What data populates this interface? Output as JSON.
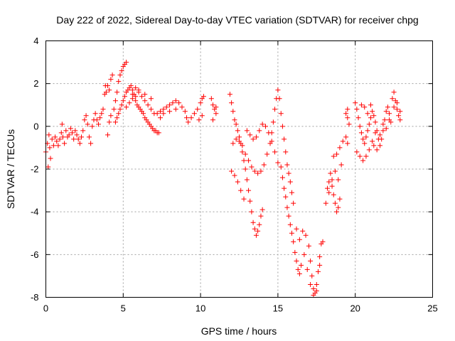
{
  "chart_data": {
    "type": "scatter",
    "title": "Day 222 of 2022, Sidereal Day-to-day VTEC variation (SDTVAR) for receiver chpg",
    "xlabel": "GPS time / hours",
    "ylabel": "SDTVAR / TECUs",
    "xlim": [
      0,
      25
    ],
    "ylim": [
      -8,
      4
    ],
    "xticks": [
      0,
      5,
      10,
      15,
      20,
      25
    ],
    "yticks": [
      -8,
      -6,
      -4,
      -2,
      0,
      2,
      4
    ],
    "grid": true,
    "marker": "+",
    "color": "#ff0000",
    "series": [
      {
        "points": [
          [
            0.0,
            -1.2
          ],
          [
            0.1,
            -0.8
          ],
          [
            0.2,
            -0.4
          ],
          [
            0.3,
            -1.5
          ],
          [
            0.15,
            -1.9
          ],
          [
            0.25,
            -1.0
          ],
          [
            0.4,
            -0.6
          ],
          [
            0.5,
            -0.9
          ],
          [
            0.6,
            -0.5
          ],
          [
            0.7,
            -0.7
          ],
          [
            0.8,
            -0.9
          ],
          [
            0.9,
            -0.6
          ],
          [
            1.0,
            -0.3
          ],
          [
            1.05,
            0.1
          ],
          [
            1.1,
            -0.5
          ],
          [
            1.2,
            -0.8
          ],
          [
            1.3,
            -0.2
          ],
          [
            1.4,
            -0.5
          ],
          [
            1.5,
            -0.4
          ],
          [
            1.6,
            -0.1
          ],
          [
            1.7,
            -0.3
          ],
          [
            1.8,
            -0.6
          ],
          [
            1.9,
            -0.2
          ],
          [
            2.0,
            -0.4
          ],
          [
            2.1,
            -0.6
          ],
          [
            2.2,
            -0.8
          ],
          [
            2.3,
            -0.5
          ],
          [
            2.4,
            -0.2
          ],
          [
            2.5,
            0.3
          ],
          [
            2.6,
            0.5
          ],
          [
            2.7,
            0.1
          ],
          [
            2.8,
            -0.5
          ],
          [
            2.9,
            -0.8
          ],
          [
            3.0,
            0.0
          ],
          [
            3.1,
            0.3
          ],
          [
            3.2,
            0.6
          ],
          [
            3.3,
            0.3
          ],
          [
            3.4,
            0.1
          ],
          [
            3.5,
            0.4
          ],
          [
            3.6,
            0.6
          ],
          [
            3.7,
            0.8
          ],
          [
            3.8,
            1.5
          ],
          [
            3.85,
            1.9
          ],
          [
            3.9,
            1.6
          ],
          [
            4.0,
            -0.4
          ],
          [
            4.1,
            0.2
          ],
          [
            4.2,
            0.5
          ]
        ]
      },
      {
        "points": [
          [
            4.4,
            0.8
          ],
          [
            4.5,
            1.2
          ],
          [
            4.6,
            1.6
          ],
          [
            4.7,
            2.1
          ],
          [
            4.8,
            2.4
          ],
          [
            4.9,
            2.6
          ],
          [
            5.0,
            2.8
          ],
          [
            5.1,
            2.9
          ],
          [
            5.2,
            3.0
          ],
          [
            4.5,
            0.2
          ],
          [
            4.6,
            0.4
          ],
          [
            4.7,
            0.6
          ],
          [
            4.8,
            0.8
          ],
          [
            4.9,
            1.0
          ],
          [
            5.0,
            1.2
          ],
          [
            5.1,
            1.4
          ],
          [
            5.2,
            1.6
          ],
          [
            5.3,
            1.7
          ],
          [
            5.4,
            1.8
          ],
          [
            5.5,
            1.9
          ],
          [
            5.6,
            1.7
          ],
          [
            5.7,
            1.5
          ],
          [
            5.8,
            1.2
          ],
          [
            5.9,
            1.0
          ],
          [
            6.0,
            0.9
          ],
          [
            6.1,
            0.8
          ],
          [
            6.2,
            0.7
          ],
          [
            6.3,
            0.6
          ],
          [
            6.4,
            0.4
          ],
          [
            6.5,
            0.3
          ],
          [
            6.6,
            0.2
          ],
          [
            6.7,
            0.1
          ],
          [
            6.8,
            0.0
          ],
          [
            6.9,
            -0.1
          ],
          [
            7.0,
            -0.2
          ],
          [
            7.1,
            -0.2
          ],
          [
            7.2,
            -0.3
          ],
          [
            7.3,
            -0.3
          ],
          [
            5.2,
            0.9
          ],
          [
            5.4,
            1.1
          ],
          [
            5.6,
            1.3
          ],
          [
            5.8,
            1.4
          ],
          [
            6.0,
            1.6
          ],
          [
            6.2,
            1.4
          ],
          [
            6.4,
            1.2
          ],
          [
            6.6,
            1.0
          ],
          [
            6.8,
            0.8
          ],
          [
            7.0,
            0.6
          ],
          [
            7.2,
            0.6
          ],
          [
            7.4,
            0.7
          ],
          [
            7.6,
            0.8
          ],
          [
            7.8,
            0.9
          ],
          [
            8.0,
            1.0
          ],
          [
            8.2,
            1.1
          ],
          [
            8.4,
            1.2
          ],
          [
            8.6,
            1.1
          ],
          [
            8.8,
            0.9
          ],
          [
            9.0,
            0.7
          ],
          [
            9.1,
            0.4
          ],
          [
            9.2,
            0.2
          ],
          [
            9.4,
            0.4
          ],
          [
            9.6,
            0.6
          ],
          [
            9.8,
            0.8
          ],
          [
            10.0,
            1.1
          ],
          [
            10.1,
            1.3
          ],
          [
            10.2,
            1.4
          ],
          [
            9.9,
            0.3
          ],
          [
            10.1,
            0.5
          ],
          [
            7.4,
            0.4
          ],
          [
            7.6,
            0.6
          ],
          [
            8.0,
            0.7
          ],
          [
            8.4,
            0.8
          ],
          [
            5.6,
            1.5
          ],
          [
            5.8,
            1.8
          ],
          [
            6.0,
            1.7
          ],
          [
            6.4,
            1.5
          ],
          [
            6.8,
            1.3
          ],
          [
            4.2,
            2.2
          ],
          [
            4.3,
            2.4
          ],
          [
            4.0,
            1.9
          ],
          [
            4.1,
            1.7
          ]
        ]
      },
      {
        "points": [
          [
            10.7,
            1.3
          ],
          [
            10.8,
            1.0
          ],
          [
            10.9,
            0.8
          ],
          [
            11.0,
            0.6
          ],
          [
            10.8,
            0.3
          ],
          [
            11.0,
            0.9
          ],
          [
            11.9,
            1.5
          ],
          [
            12.0,
            1.1
          ],
          [
            12.1,
            0.7
          ],
          [
            12.2,
            0.3
          ],
          [
            12.3,
            0.1
          ],
          [
            12.4,
            -0.2
          ],
          [
            12.5,
            -0.5
          ],
          [
            12.6,
            -0.8
          ],
          [
            12.7,
            -1.2
          ],
          [
            12.8,
            -1.6
          ],
          [
            12.9,
            -2.0
          ],
          [
            13.0,
            -2.5
          ],
          [
            13.1,
            -3.0
          ],
          [
            13.2,
            -3.5
          ],
          [
            13.3,
            -4.0
          ],
          [
            13.4,
            -4.5
          ],
          [
            13.5,
            -4.8
          ],
          [
            13.6,
            -5.1
          ],
          [
            13.7,
            -4.9
          ],
          [
            13.8,
            -4.6
          ],
          [
            13.9,
            -4.2
          ],
          [
            14.0,
            -3.9
          ],
          [
            12.0,
            -2.1
          ],
          [
            12.2,
            -2.3
          ],
          [
            12.4,
            -2.6
          ],
          [
            12.6,
            -3.0
          ],
          [
            12.8,
            -3.4
          ],
          [
            12.1,
            -0.8
          ],
          [
            12.3,
            -0.6
          ],
          [
            12.5,
            -0.7
          ],
          [
            12.7,
            -0.9
          ],
          [
            12.9,
            -1.3
          ],
          [
            13.1,
            -1.6
          ],
          [
            13.3,
            -1.9
          ],
          [
            13.5,
            -2.1
          ],
          [
            13.7,
            -2.2
          ],
          [
            13.9,
            -2.1
          ],
          [
            14.1,
            -1.8
          ],
          [
            14.3,
            -1.3
          ],
          [
            14.5,
            -0.8
          ],
          [
            14.6,
            -0.3
          ],
          [
            14.7,
            0.2
          ],
          [
            14.8,
            0.8
          ],
          [
            14.9,
            1.3
          ],
          [
            15.0,
            1.7
          ],
          [
            15.1,
            1.3
          ],
          [
            13.0,
            -0.2
          ],
          [
            13.2,
            -0.4
          ],
          [
            13.4,
            -0.6
          ],
          [
            13.6,
            -0.5
          ],
          [
            13.8,
            -0.2
          ],
          [
            14.0,
            0.1
          ],
          [
            14.2,
            0.0
          ],
          [
            14.4,
            -0.3
          ],
          [
            14.6,
            -0.7
          ],
          [
            14.8,
            -1.2
          ],
          [
            15.0,
            -1.7
          ],
          [
            15.2,
            -1.9
          ],
          [
            15.3,
            -2.4
          ],
          [
            15.4,
            -2.9
          ],
          [
            15.5,
            -3.3
          ],
          [
            15.6,
            -3.8
          ],
          [
            15.7,
            -4.2
          ],
          [
            15.8,
            -4.6
          ],
          [
            15.9,
            -5.0
          ],
          [
            16.0,
            -5.4
          ],
          [
            16.1,
            -5.9
          ],
          [
            16.2,
            -6.3
          ],
          [
            16.3,
            -6.7
          ],
          [
            16.4,
            -6.9
          ],
          [
            15.2,
            0.6
          ],
          [
            15.3,
            0.0
          ],
          [
            15.4,
            -0.6
          ],
          [
            15.5,
            -1.2
          ],
          [
            15.6,
            -1.8
          ],
          [
            15.7,
            -2.2
          ],
          [
            15.8,
            -2.6
          ],
          [
            15.9,
            -3.1
          ],
          [
            16.0,
            -3.6
          ],
          [
            16.2,
            -4.8
          ],
          [
            16.4,
            -5.3
          ],
          [
            16.6,
            -4.9
          ],
          [
            16.8,
            -5.1
          ],
          [
            17.0,
            -5.6
          ],
          [
            17.1,
            -6.3
          ],
          [
            17.2,
            -7.0
          ],
          [
            17.3,
            -7.6
          ],
          [
            17.4,
            -7.8
          ],
          [
            17.5,
            -7.4
          ],
          [
            17.6,
            -6.8
          ],
          [
            17.7,
            -6.1
          ],
          [
            17.8,
            -5.5
          ],
          [
            16.5,
            -6.5
          ],
          [
            16.7,
            -6.0
          ],
          [
            16.9,
            -6.7
          ],
          [
            17.1,
            -7.4
          ],
          [
            17.3,
            -7.9
          ],
          [
            17.5,
            -7.7
          ],
          [
            17.7,
            -6.5
          ],
          [
            17.9,
            -5.4
          ],
          [
            18.1,
            -3.6
          ],
          [
            18.2,
            -2.9
          ],
          [
            18.3,
            -2.6
          ],
          [
            18.4,
            -2.2
          ],
          [
            18.5,
            -2.8
          ],
          [
            18.6,
            -3.2
          ],
          [
            18.7,
            -3.6
          ],
          [
            18.8,
            -4.0
          ],
          [
            18.9,
            -3.8
          ],
          [
            19.0,
            -3.4
          ],
          [
            18.3,
            -3.1
          ],
          [
            18.5,
            -2.5
          ],
          [
            18.7,
            -2.1
          ],
          [
            18.9,
            -2.5
          ],
          [
            19.1,
            -1.8
          ],
          [
            18.6,
            -1.4
          ],
          [
            18.8,
            -1.3
          ],
          [
            19.0,
            -1.0
          ],
          [
            19.2,
            -0.7
          ],
          [
            19.4,
            -0.5
          ],
          [
            19.5,
            -0.8
          ]
        ]
      },
      {
        "points": [
          [
            19.4,
            0.6
          ],
          [
            19.5,
            0.4
          ],
          [
            19.6,
            0.1
          ],
          [
            19.5,
            0.8
          ],
          [
            20.0,
            1.1
          ],
          [
            20.1,
            0.8
          ],
          [
            20.2,
            0.4
          ],
          [
            20.3,
            0.0
          ],
          [
            20.4,
            -0.3
          ],
          [
            20.5,
            -0.6
          ],
          [
            20.6,
            -0.8
          ],
          [
            20.7,
            -0.5
          ],
          [
            20.8,
            -0.2
          ],
          [
            20.9,
            0.1
          ],
          [
            21.0,
            0.4
          ],
          [
            21.1,
            0.7
          ],
          [
            21.2,
            0.5
          ],
          [
            21.3,
            0.2
          ],
          [
            21.4,
            -0.2
          ],
          [
            21.5,
            -0.6
          ],
          [
            21.6,
            -0.9
          ],
          [
            21.7,
            -0.6
          ],
          [
            21.8,
            -0.2
          ],
          [
            21.9,
            0.3
          ],
          [
            22.0,
            0.7
          ],
          [
            22.1,
            0.9
          ],
          [
            22.2,
            0.6
          ],
          [
            22.3,
            0.2
          ],
          [
            20.1,
            -1.2
          ],
          [
            20.3,
            -1.4
          ],
          [
            20.5,
            -1.6
          ],
          [
            20.7,
            -1.4
          ],
          [
            20.9,
            -1.1
          ],
          [
            21.1,
            -0.7
          ],
          [
            21.3,
            -0.3
          ],
          [
            20.4,
            1.0
          ],
          [
            20.6,
            0.9
          ],
          [
            20.8,
            0.6
          ],
          [
            21.0,
            1.0
          ],
          [
            21.2,
            -0.9
          ],
          [
            21.4,
            -1.1
          ],
          [
            21.6,
            -0.4
          ],
          [
            21.8,
            0.1
          ],
          [
            22.0,
            -0.1
          ],
          [
            22.2,
            0.3
          ],
          [
            22.4,
            1.3
          ],
          [
            22.5,
            1.6
          ],
          [
            22.6,
            1.2
          ],
          [
            22.7,
            0.8
          ],
          [
            22.8,
            0.5
          ],
          [
            22.9,
            0.3
          ],
          [
            22.5,
            0.9
          ],
          [
            22.7,
            1.1
          ],
          [
            22.9,
            0.7
          ]
        ]
      }
    ]
  }
}
